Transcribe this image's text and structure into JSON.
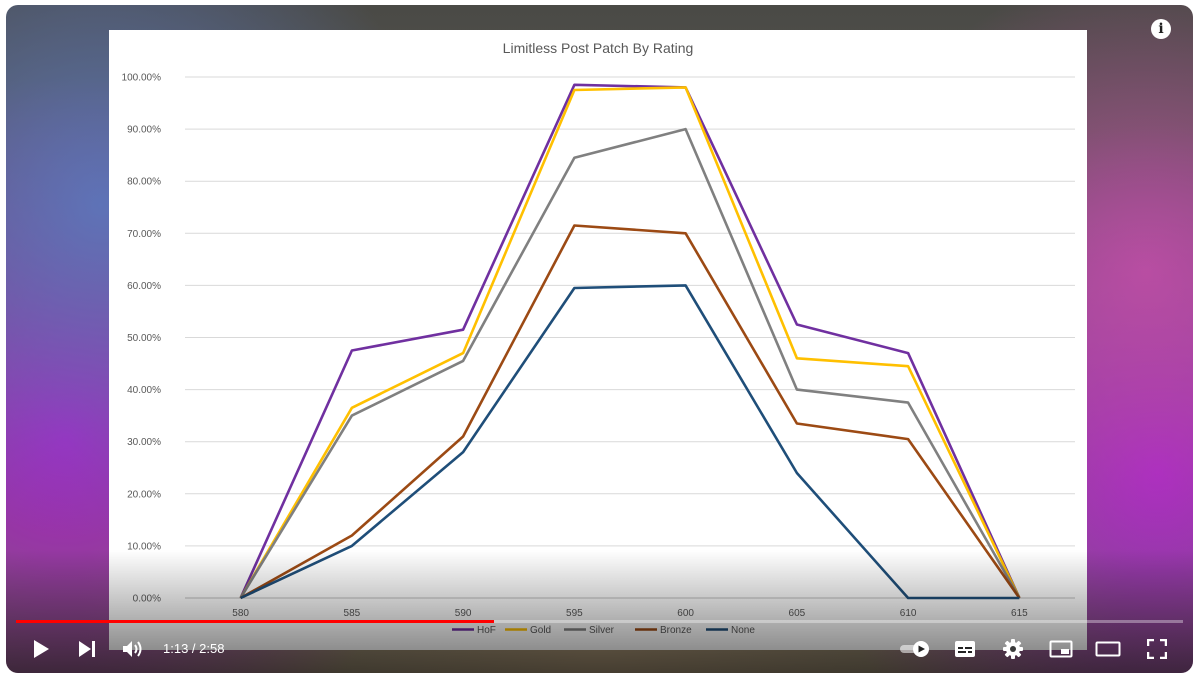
{
  "player": {
    "current_time": "1:13",
    "duration": "2:58",
    "time_separator": " / ",
    "progress_fraction": 0.41,
    "info_glyph": "i",
    "accent_color": "#ff0000",
    "icons": {
      "info": "info-icon",
      "play": "play-icon",
      "next": "next-icon",
      "volume": "volume-icon",
      "autoplay": "autoplay-toggle-icon",
      "subtitles": "subtitles-icon",
      "settings": "gear-icon",
      "miniplayer": "miniplayer-icon",
      "theater": "theater-mode-icon",
      "fullscreen": "fullscreen-icon"
    }
  },
  "chart_data": {
    "type": "line",
    "title": "Limitless Post Patch By Rating",
    "x": [
      "580",
      "585",
      "590",
      "595",
      "600",
      "605",
      "610",
      "615"
    ],
    "ylim": [
      0,
      100
    ],
    "yticks": [
      "0.00%",
      "10.00%",
      "20.00%",
      "30.00%",
      "40.00%",
      "50.00%",
      "60.00%",
      "70.00%",
      "80.00%",
      "90.00%",
      "100.00%"
    ],
    "grid": true,
    "legend_position": "bottom",
    "series": [
      {
        "name": "HoF",
        "color": "#7030a0",
        "values": [
          0,
          47.5,
          51.5,
          98.5,
          98,
          52.5,
          47,
          0
        ]
      },
      {
        "name": "Gold",
        "color": "#ffc000",
        "values": [
          0,
          36.5,
          47,
          97.5,
          98,
          46,
          44.5,
          0
        ]
      },
      {
        "name": "Silver",
        "color": "#808080",
        "values": [
          0,
          35,
          45.5,
          84.5,
          90,
          40,
          37.5,
          0
        ]
      },
      {
        "name": "Bronze",
        "color": "#9c4a14",
        "values": [
          0,
          12,
          31,
          71.5,
          70,
          33.5,
          30.5,
          0
        ]
      },
      {
        "name": "None",
        "color": "#1f4e79",
        "values": [
          0,
          10,
          28,
          59.5,
          60,
          24,
          0,
          0
        ]
      }
    ]
  }
}
